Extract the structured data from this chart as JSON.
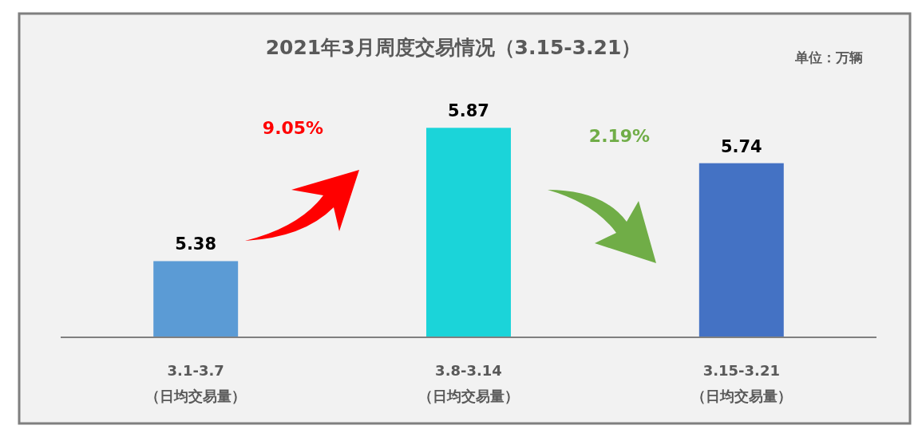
{
  "chart_data": {
    "type": "bar",
    "title": "2021年3月周度交易情况（3.15-3.21）",
    "categories": [
      "3.1-3.7\n（日均交易量）",
      "3.8-3.14\n（日均交易量）",
      "3.15-3.21\n（日均交易量）"
    ],
    "values": [
      5.38,
      5.87,
      5.74
    ],
    "colors": [
      "#5b9bd5",
      "#1bd4d9",
      "#4472c4"
    ],
    "ylim": [
      5.1,
      6.29
    ],
    "data_labels": true,
    "tick_labels": "x",
    "annotations": [
      "单位：万辆",
      "9.05%",
      "2.19%"
    ]
  }
}
